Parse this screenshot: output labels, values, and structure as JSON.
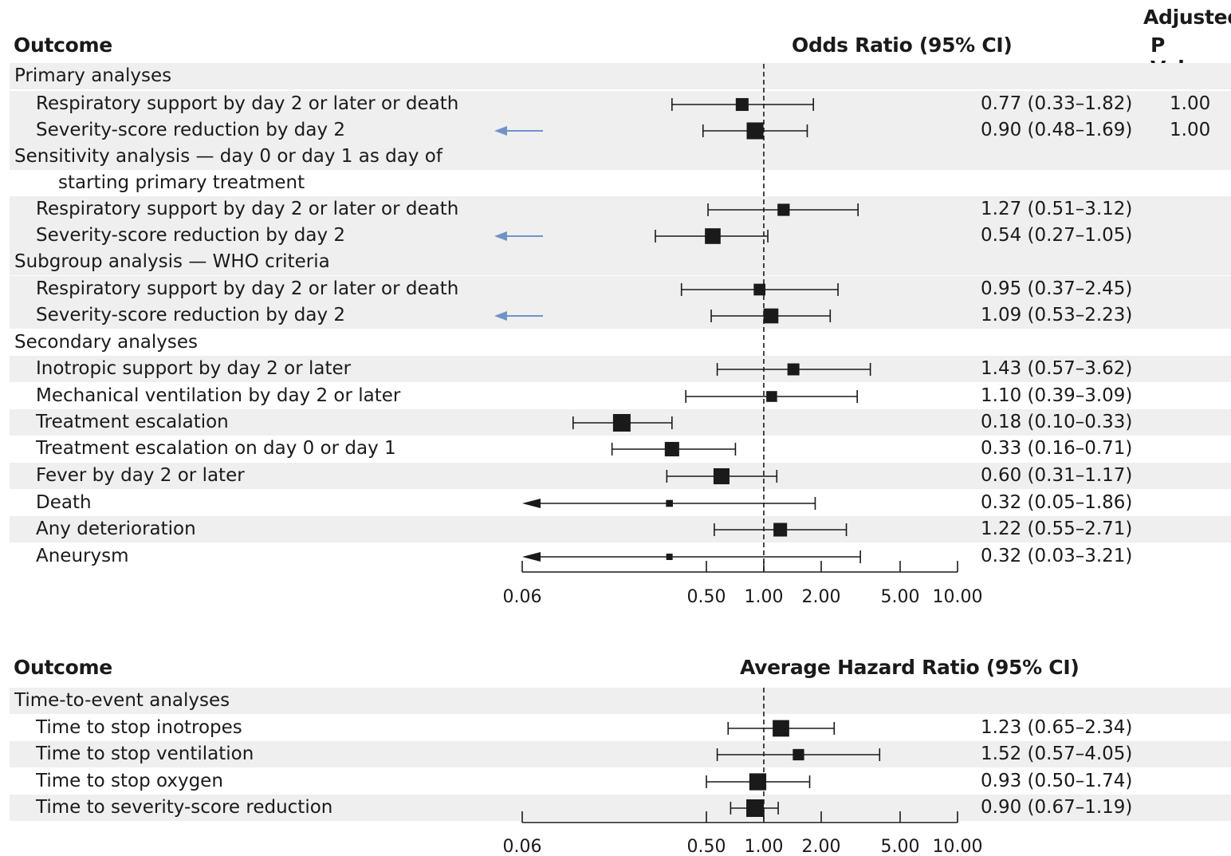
{
  "panel1": {
    "header_outcome": "Outcome",
    "header_effect": "Odds Ratio (95% CI)",
    "header_p_line1": "Adjusted",
    "header_p_line2": "P Value",
    "axis_ticks": [
      "0.06",
      "0.50",
      "1.00",
      "2.00",
      "5.00",
      "10.00"
    ]
  },
  "panel2": {
    "header_outcome": "Outcome",
    "header_effect": "Average Hazard Ratio (95% CI)",
    "axis_ticks": [
      "0.06",
      "0.50",
      "1.00",
      "2.00",
      "5.00",
      "10.00"
    ]
  },
  "colors": {
    "arrow": "#6f93c9",
    "marker": "#1a1a1a",
    "shade": "#efefef"
  },
  "chart_data": [
    {
      "type": "forest",
      "xscale": "log",
      "xlim": [
        0.06,
        10.0
      ],
      "reference_line": 1.0,
      "rows": [
        {
          "label": "Primary analyses",
          "section": true
        },
        {
          "label": "Respiratory support by day 2 or later or death",
          "or": 0.77,
          "lo": 0.33,
          "hi": 1.82,
          "text": "0.77 (0.33–1.82)",
          "p": "1.00"
        },
        {
          "label": "Severity-score reduction by day 2",
          "or": 0.9,
          "lo": 0.48,
          "hi": 1.69,
          "text": "0.90 (0.48–1.69)",
          "p": "1.00",
          "arrow": true
        },
        {
          "label": "Sensitivity analysis — day 0 or day 1 as day of",
          "label2": "starting primary treatment",
          "section": true
        },
        {
          "label": "Respiratory support by day 2 or later or death",
          "or": 1.27,
          "lo": 0.51,
          "hi": 3.12,
          "text": "1.27 (0.51–3.12)"
        },
        {
          "label": "Severity-score reduction by day 2",
          "or": 0.54,
          "lo": 0.27,
          "hi": 1.05,
          "text": "0.54 (0.27–1.05)",
          "arrow": true
        },
        {
          "label": "Subgroup analysis — WHO criteria",
          "section": true
        },
        {
          "label": "Respiratory support by day 2 or later or death",
          "or": 0.95,
          "lo": 0.37,
          "hi": 2.45,
          "text": "0.95 (0.37–2.45)"
        },
        {
          "label": "Severity-score reduction by day 2",
          "or": 1.09,
          "lo": 0.53,
          "hi": 2.23,
          "text": "1.09 (0.53–2.23)",
          "arrow": true
        },
        {
          "label": "Secondary analyses",
          "section": true
        },
        {
          "label": "Inotropic support by day 2 or later",
          "or": 1.43,
          "lo": 0.57,
          "hi": 3.62,
          "text": "1.43 (0.57–3.62)"
        },
        {
          "label": "Mechanical ventilation by day 2 or later",
          "or": 1.1,
          "lo": 0.39,
          "hi": 3.09,
          "text": "1.10 (0.39–3.09)"
        },
        {
          "label": "Treatment escalation",
          "or": 0.18,
          "lo": 0.1,
          "hi": 0.33,
          "text": "0.18 (0.10–0.33)"
        },
        {
          "label": "Treatment escalation on day 0 or day 1",
          "or": 0.33,
          "lo": 0.16,
          "hi": 0.71,
          "text": "0.33 (0.16–0.71)"
        },
        {
          "label": "Fever by day 2 or later",
          "or": 0.6,
          "lo": 0.31,
          "hi": 1.17,
          "text": "0.60 (0.31–1.17)"
        },
        {
          "label": "Death",
          "or": 0.32,
          "lo": 0.05,
          "hi": 1.86,
          "text": "0.32 (0.05–1.86)",
          "truncated_low": true
        },
        {
          "label": "Any deterioration",
          "or": 1.22,
          "lo": 0.55,
          "hi": 2.71,
          "text": "1.22 (0.55–2.71)"
        },
        {
          "label": "Aneurysm",
          "or": 0.32,
          "lo": 0.03,
          "hi": 3.21,
          "text": "0.32 (0.03–3.21)",
          "truncated_low": true
        }
      ]
    },
    {
      "type": "forest",
      "xscale": "log",
      "xlim": [
        0.06,
        10.0
      ],
      "reference_line": 1.0,
      "rows": [
        {
          "label": "Time-to-event analyses",
          "section": true
        },
        {
          "label": "Time to stop inotropes",
          "or": 1.23,
          "lo": 0.65,
          "hi": 2.34,
          "text": "1.23 (0.65–2.34)"
        },
        {
          "label": "Time to stop ventilation",
          "or": 1.52,
          "lo": 0.57,
          "hi": 4.05,
          "text": "1.52 (0.57–4.05)"
        },
        {
          "label": "Time to stop oxygen",
          "or": 0.93,
          "lo": 0.5,
          "hi": 1.74,
          "text": "0.93 (0.50–1.74)"
        },
        {
          "label": "Time to severity-score reduction",
          "or": 0.9,
          "lo": 0.67,
          "hi": 1.19,
          "text": "0.90 (0.67–1.19)"
        }
      ]
    }
  ]
}
